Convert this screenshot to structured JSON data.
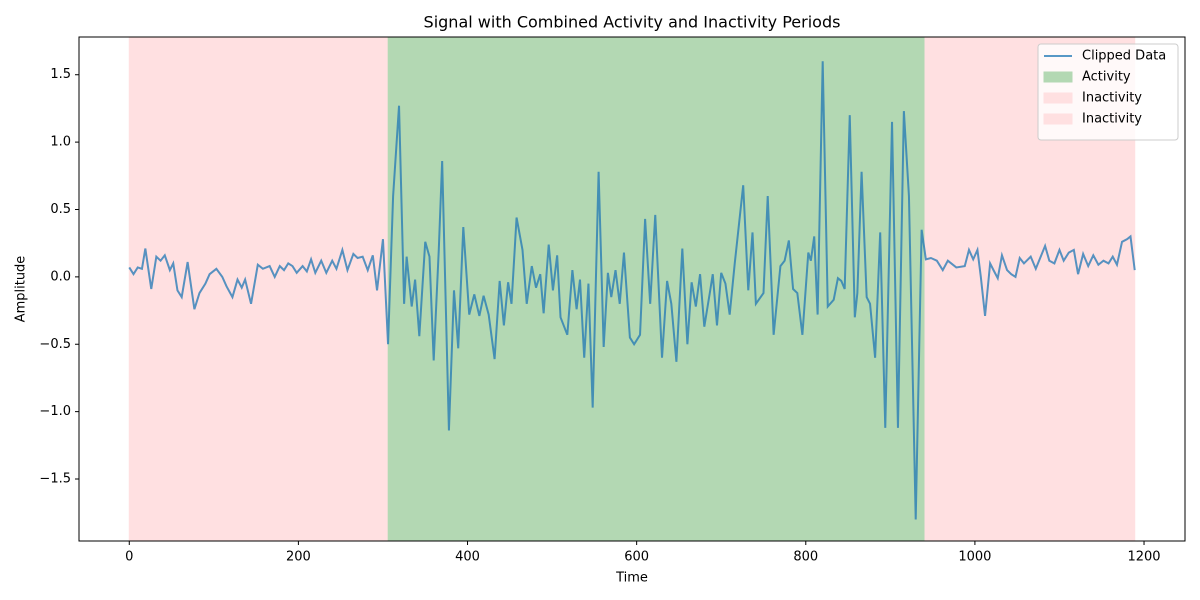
{
  "chart_data": {
    "type": "line",
    "title": "Signal with Combined Activity and Inactivity Periods",
    "xlabel": "Time",
    "ylabel": "Amplitude",
    "x": [
      0,
      5,
      10,
      15,
      19,
      26,
      32,
      37,
      42,
      48,
      52,
      57,
      62,
      69,
      77,
      83,
      90,
      95,
      103,
      110,
      115,
      122,
      128,
      133,
      137,
      144,
      152,
      158,
      166,
      172,
      178,
      183,
      188,
      193,
      198,
      205,
      210,
      215,
      220,
      227,
      233,
      240,
      245,
      252,
      258,
      265,
      270,
      276,
      282,
      288,
      293,
      300,
      306,
      312,
      319,
      325,
      328,
      334,
      338,
      343,
      350,
      355,
      360,
      366,
      370,
      378,
      384,
      389,
      395,
      402,
      408,
      414,
      419,
      425,
      432,
      438,
      443,
      448,
      452,
      458,
      465,
      470,
      476,
      481,
      486,
      490,
      496,
      501,
      506,
      510,
      518,
      524,
      529,
      533,
      538,
      543,
      548,
      555,
      561,
      566,
      570,
      575,
      580,
      585,
      592,
      597,
      604,
      610,
      616,
      622,
      630,
      636,
      641,
      647,
      654,
      660,
      665,
      670,
      675,
      680,
      687,
      690,
      695,
      700,
      705,
      710,
      716,
      726,
      732,
      737,
      741,
      750,
      755,
      762,
      770,
      775,
      780,
      785,
      790,
      796,
      803,
      806,
      810,
      814,
      820,
      826,
      833,
      838,
      842,
      846,
      852,
      858,
      861,
      866,
      872,
      876,
      882,
      888,
      894,
      902,
      909,
      916,
      922,
      930,
      937,
      942,
      948,
      955,
      962,
      968,
      978,
      988,
      993,
      998,
      1003,
      1007,
      1012,
      1018,
      1022,
      1027,
      1032,
      1038,
      1043,
      1048,
      1053,
      1058,
      1066,
      1072,
      1083,
      1088,
      1094,
      1100,
      1105,
      1111,
      1117,
      1122,
      1128,
      1134,
      1140,
      1146,
      1152,
      1158,
      1163,
      1168,
      1174,
      1180,
      1184,
      1189
    ],
    "series": [
      {
        "name": "Clipped Data",
        "color": "#1f77b4",
        "values": [
          0.07,
          0.02,
          0.07,
          0.06,
          0.21,
          -0.09,
          0.15,
          0.12,
          0.16,
          0.05,
          0.1,
          -0.1,
          -0.15,
          0.11,
          -0.24,
          -0.12,
          -0.05,
          0.02,
          0.06,
          0.0,
          -0.07,
          -0.15,
          -0.02,
          -0.08,
          -0.02,
          -0.2,
          0.09,
          0.06,
          0.08,
          0.0,
          0.08,
          0.05,
          0.1,
          0.08,
          0.03,
          0.08,
          0.04,
          0.13,
          0.03,
          0.12,
          0.03,
          0.12,
          0.06,
          0.2,
          0.05,
          0.17,
          0.14,
          0.15,
          0.05,
          0.16,
          -0.1,
          0.28,
          -0.5,
          0.6,
          1.27,
          -0.2,
          0.15,
          -0.22,
          -0.02,
          -0.44,
          0.26,
          0.15,
          -0.62,
          0.2,
          0.86,
          -1.14,
          -0.1,
          -0.53,
          0.37,
          -0.28,
          -0.13,
          -0.29,
          -0.14,
          -0.28,
          -0.61,
          -0.03,
          -0.36,
          -0.04,
          -0.2,
          0.44,
          0.2,
          -0.2,
          0.08,
          -0.08,
          0.02,
          -0.27,
          0.24,
          -0.1,
          0.16,
          -0.3,
          -0.43,
          0.05,
          -0.24,
          -0.02,
          -0.6,
          -0.05,
          -0.97,
          0.78,
          -0.52,
          0.03,
          -0.15,
          0.05,
          -0.2,
          0.18,
          -0.45,
          -0.5,
          -0.43,
          0.43,
          -0.2,
          0.46,
          -0.6,
          -0.03,
          -0.2,
          -0.63,
          0.21,
          -0.5,
          -0.04,
          -0.22,
          0.02,
          -0.37,
          -0.1,
          0.02,
          -0.36,
          0.03,
          -0.05,
          -0.28,
          0.1,
          0.68,
          -0.1,
          0.33,
          -0.2,
          -0.12,
          0.6,
          -0.43,
          0.08,
          0.12,
          0.27,
          -0.09,
          -0.12,
          -0.43,
          0.18,
          0.12,
          0.3,
          -0.28,
          1.6,
          -0.22,
          -0.17,
          -0.01,
          -0.03,
          -0.09,
          1.2,
          -0.3,
          -0.12,
          0.78,
          -0.15,
          -0.2,
          -0.6,
          0.33,
          -1.12,
          1.15,
          -1.12,
          1.23,
          0.6,
          -1.8,
          0.35,
          0.13,
          0.14,
          0.12,
          0.05,
          0.12,
          0.07,
          0.08,
          0.2,
          0.13,
          0.2,
          0.0,
          -0.29,
          0.1,
          0.05,
          -0.01,
          0.16,
          0.05,
          0.02,
          0.0,
          0.14,
          0.1,
          0.15,
          0.06,
          0.23,
          0.12,
          0.1,
          0.2,
          0.12,
          0.18,
          0.2,
          0.02,
          0.17,
          0.08,
          0.16,
          0.09,
          0.12,
          0.1,
          0.15,
          0.09,
          0.26,
          0.28,
          0.3,
          0.05
        ]
      }
    ],
    "spans": [
      {
        "name": "Activity",
        "color": "#b3d8b3",
        "start": 305,
        "end": 941
      },
      {
        "name": "Inactivity",
        "color": "#ffe0e1",
        "start": 0,
        "end": 305
      },
      {
        "name": "Inactivity",
        "color": "#ffe0e1",
        "start": 941,
        "end": 1189
      }
    ],
    "xlim": [
      -59.45,
      1248.45
    ],
    "ylim": [
      -1.96,
      1.78
    ],
    "xticks": [
      0,
      200,
      400,
      600,
      800,
      1000,
      1200
    ],
    "yticks": [
      {
        "value": -1.5,
        "label": "−1.5"
      },
      {
        "value": -1,
        "label": "−1.0"
      },
      {
        "value": -0.5,
        "label": "−0.5"
      },
      {
        "value": 0,
        "label": "0.0"
      },
      0.5,
      {
        "value": 1,
        "label": "1.0"
      },
      1.5
    ],
    "legend": "upper right"
  }
}
